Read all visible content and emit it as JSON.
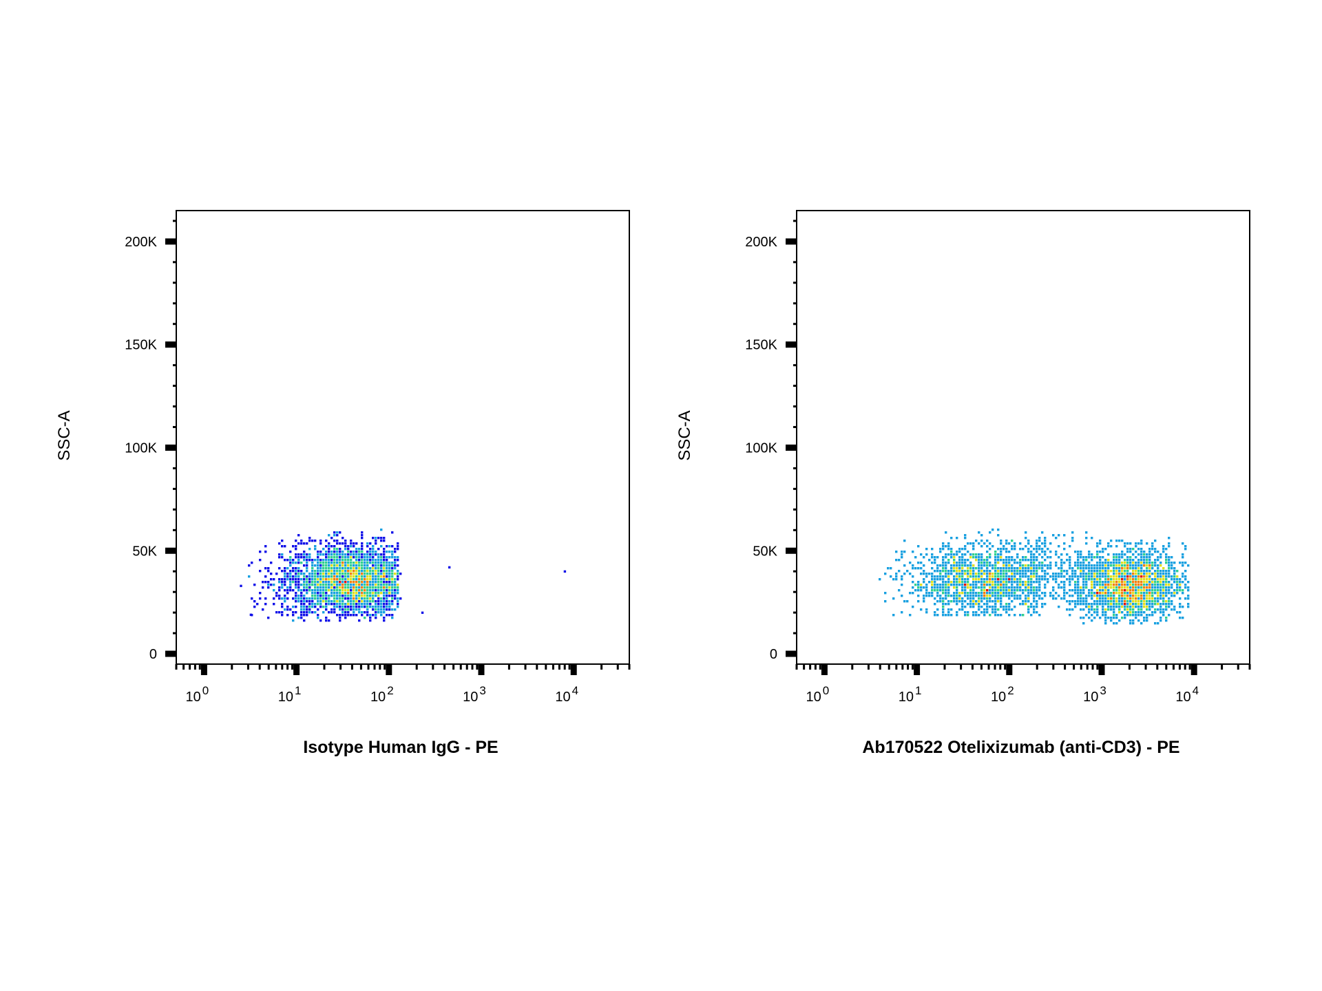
{
  "chart_data": [
    {
      "type": "scatter",
      "subtype": "flow-cytometry-density-dot-plot",
      "xlabel": "Isotype Human IgG - PE",
      "ylabel": "SSC-A",
      "x_scale": "log",
      "xlim": [
        0.5,
        40000
      ],
      "ylim": [
        -5000,
        215000
      ],
      "x_ticks": [
        {
          "value": 1,
          "base": "10",
          "exp": "0"
        },
        {
          "value": 10,
          "base": "10",
          "exp": "1"
        },
        {
          "value": 100,
          "base": "10",
          "exp": "2"
        },
        {
          "value": 1000,
          "base": "10",
          "exp": "3"
        },
        {
          "value": 10000,
          "base": "10",
          "exp": "4"
        }
      ],
      "y_ticks": [
        {
          "value": 0,
          "label": "0"
        },
        {
          "value": 50000,
          "label": "50K"
        },
        {
          "value": 100000,
          "label": "100K"
        },
        {
          "value": 150000,
          "label": "150K"
        },
        {
          "value": 200000,
          "label": "200K"
        }
      ],
      "populations": [
        {
          "center_x": 40,
          "center_y": 35000,
          "spread_log_x": 0.38,
          "spread_y": 9000,
          "x_range": [
            3,
            130
          ],
          "y_range": [
            16000,
            60000
          ],
          "count": 3200
        }
      ],
      "outliers": [
        [
          230,
          20000
        ],
        [
          450,
          42000
        ],
        [
          8000,
          40000
        ],
        [
          2.5,
          33000
        ],
        [
          3.2,
          19000
        ]
      ],
      "color_scale": [
        "#1010e8",
        "#18a0e0",
        "#30d090",
        "#e0e020",
        "#f08010",
        "#e01010"
      ],
      "grid": false,
      "legend": "none"
    },
    {
      "type": "scatter",
      "subtype": "flow-cytometry-density-dot-plot",
      "xlabel": "Ab170522 Otelixizumab (anti-CD3) - PE",
      "ylabel": "SSC-A",
      "x_scale": "log",
      "xlim": [
        0.5,
        40000
      ],
      "ylim": [
        -5000,
        215000
      ],
      "x_ticks": [
        {
          "value": 1,
          "base": "10",
          "exp": "0"
        },
        {
          "value": 10,
          "base": "10",
          "exp": "1"
        },
        {
          "value": 100,
          "base": "10",
          "exp": "2"
        },
        {
          "value": 1000,
          "base": "10",
          "exp": "3"
        },
        {
          "value": 10000,
          "base": "10",
          "exp": "4"
        }
      ],
      "y_ticks": [
        {
          "value": 0,
          "label": "0"
        },
        {
          "value": 50000,
          "label": "50K"
        },
        {
          "value": 100000,
          "label": "100K"
        },
        {
          "value": 150000,
          "label": "150K"
        },
        {
          "value": 200000,
          "label": "200K"
        }
      ],
      "populations": [
        {
          "center_x": 55,
          "center_y": 35000,
          "spread_log_x": 0.42,
          "spread_y": 9000,
          "x_range": [
            4,
            250
          ],
          "y_range": [
            18000,
            60000
          ],
          "count": 1700
        },
        {
          "center_x": 2000,
          "center_y": 33000,
          "spread_log_x": 0.3,
          "spread_y": 8500,
          "x_range": [
            250,
            9000
          ],
          "y_range": [
            14000,
            60000
          ],
          "count": 2100
        },
        {
          "center_x": 320,
          "center_y": 42000,
          "spread_log_x": 0.3,
          "spread_y": 9000,
          "x_range": [
            120,
            900
          ],
          "y_range": [
            20000,
            60000
          ],
          "count": 260
        }
      ],
      "outliers": [],
      "color_scale": [
        "#1010e8",
        "#18a0e0",
        "#30d090",
        "#e0e020",
        "#f08010",
        "#e01010"
      ],
      "grid": false,
      "legend": "none"
    }
  ]
}
